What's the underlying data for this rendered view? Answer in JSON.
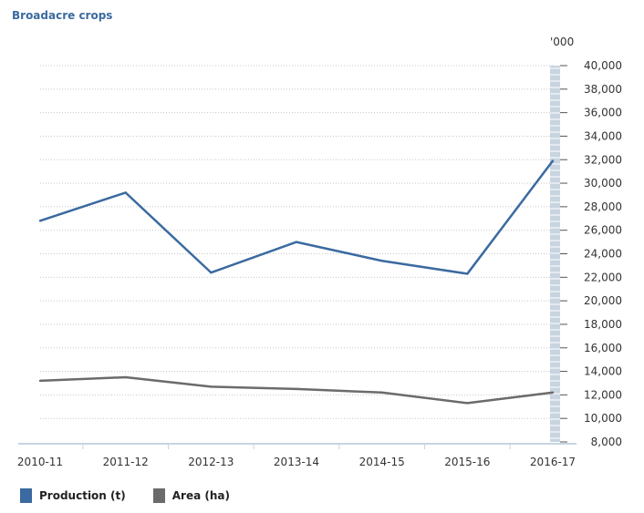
{
  "chart_data": {
    "type": "line",
    "title": "Broadacre crops",
    "unit_label": "'000",
    "categories": [
      "2010-11",
      "2011-12",
      "2012-13",
      "2013-14",
      "2014-15",
      "2015-16",
      "2016-17"
    ],
    "series": [
      {
        "name": "Production (t)",
        "color": "#3b6aa0",
        "values": [
          26800,
          29200,
          22400,
          25000,
          23400,
          22300,
          31900
        ]
      },
      {
        "name": "Area (ha)",
        "color": "#6b6b6b",
        "values": [
          13200,
          13500,
          12700,
          12500,
          12200,
          11300,
          12200
        ]
      }
    ],
    "yticks": [
      "8,000",
      "10,000",
      "12,000",
      "14,000",
      "16,000",
      "18,000",
      "20,000",
      "22,000",
      "24,000",
      "26,000",
      "28,000",
      "30,000",
      "32,000",
      "34,000",
      "36,000",
      "38,000",
      "40,000"
    ],
    "ylim": [
      8000,
      40000
    ],
    "xlabel": "",
    "ylabel": "",
    "grid": true,
    "legend": "bottom-left"
  }
}
